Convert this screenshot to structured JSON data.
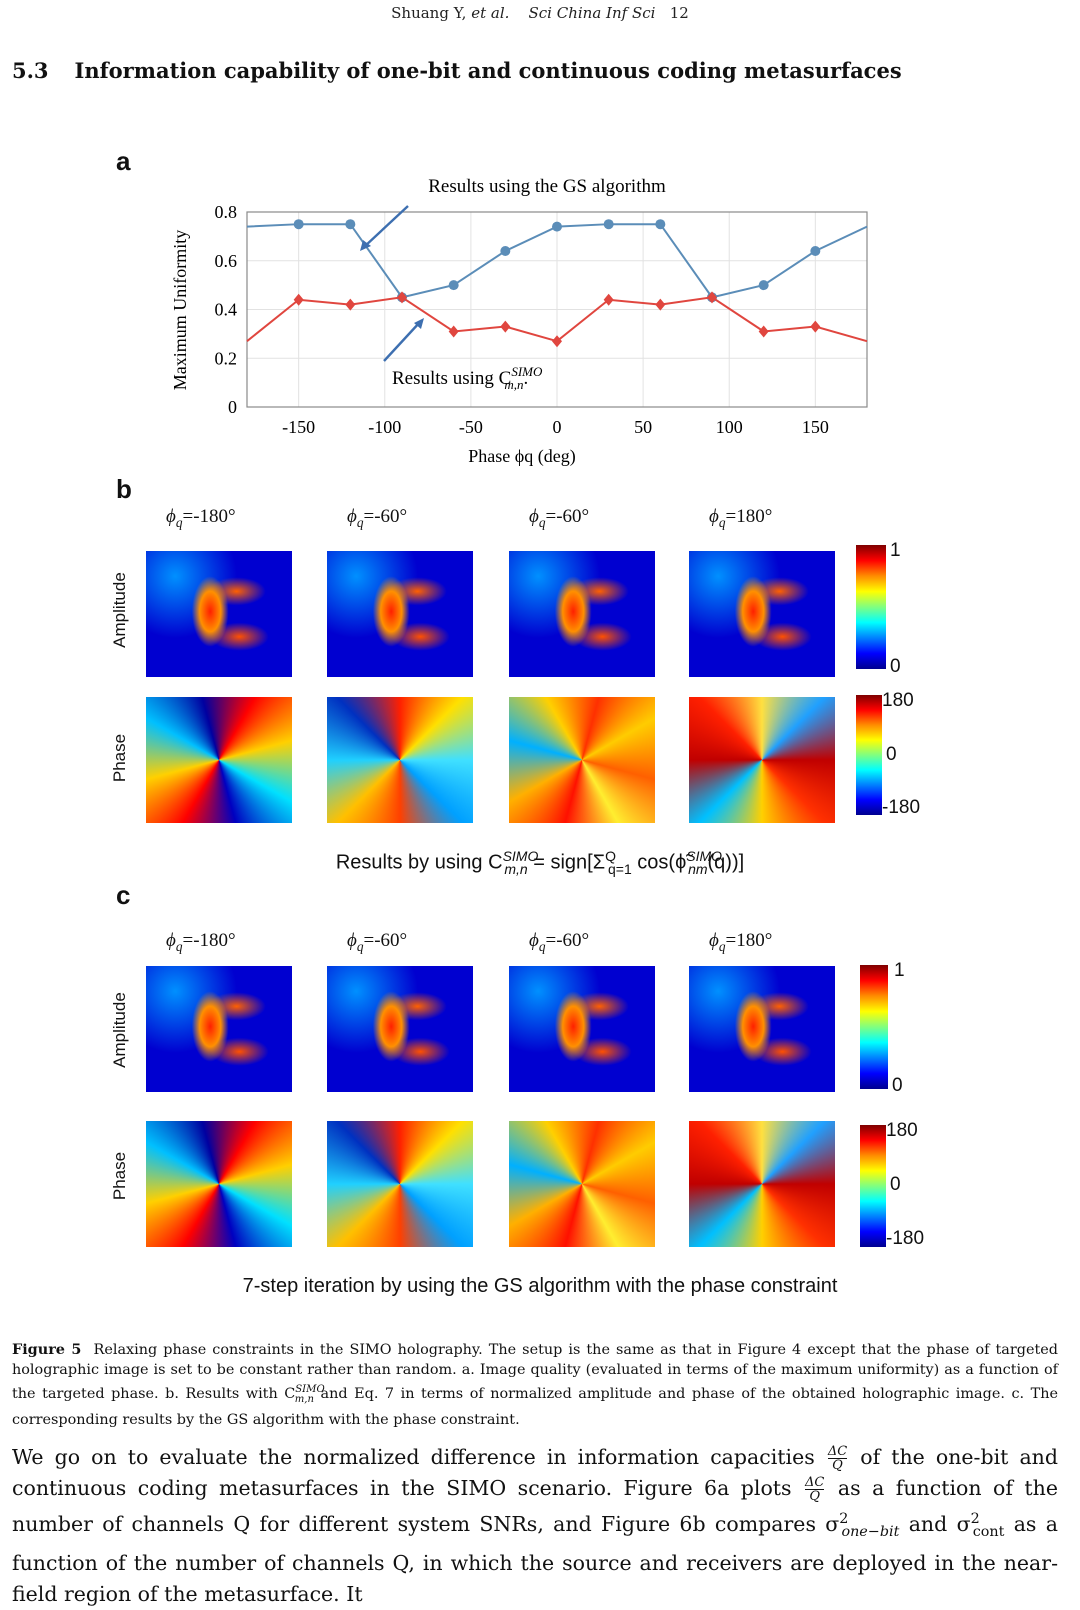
{
  "header": {
    "authors": "Shuang Y,",
    "etal": "et al.",
    "journal": "Sci China Inf Sci",
    "page": "12"
  },
  "section": {
    "number": "5.3",
    "title": "Information capability of one-bit and continuous coding metasurfaces"
  },
  "panel_a": {
    "label": "a",
    "annotation_top": "Results using the GS algorithm",
    "annotation_bottom": "Results using C",
    "annotation_bottom_sup": "SIMO",
    "annotation_bottom_sub": "m,n"
  },
  "chart_data": {
    "type": "line",
    "title": "",
    "xlabel": "Phase ϕq (deg)",
    "ylabel": "Maximum Uniformity",
    "xlim": [
      -180,
      180
    ],
    "ylim": [
      0,
      0.8
    ],
    "xticks": [
      "-150",
      "-100",
      "-50",
      "0",
      "50",
      "100",
      "150"
    ],
    "yticks": [
      "0",
      "0.2",
      "0.4",
      "0.6",
      "0.8"
    ],
    "grid": true,
    "series": [
      {
        "name": "Results using the GS algorithm",
        "color": "#5b8db8",
        "marker": "circle",
        "x": [
          -180,
          -150,
          -120,
          -90,
          -60,
          -30,
          0,
          30,
          60,
          90,
          120,
          150,
          180
        ],
        "y": [
          0.74,
          0.75,
          0.75,
          0.45,
          0.5,
          0.64,
          0.74,
          0.75,
          0.75,
          0.45,
          0.5,
          0.64,
          0.74
        ]
      },
      {
        "name": "Results using C_SIMO",
        "color": "#e0463f",
        "marker": "diamond",
        "x": [
          -180,
          -150,
          -120,
          -90,
          -60,
          -30,
          0,
          30,
          60,
          90,
          120,
          150,
          180
        ],
        "y": [
          0.27,
          0.44,
          0.42,
          0.45,
          0.31,
          0.33,
          0.27,
          0.44,
          0.42,
          0.45,
          0.31,
          0.33,
          0.27
        ]
      }
    ]
  },
  "panel_b": {
    "label": "b",
    "columns": [
      "=-180°",
      "=-60°",
      "=-60°",
      "=180°"
    ],
    "phi": "ϕ",
    "q": "q",
    "rows": [
      "Amplitude",
      "Phase"
    ],
    "amp_scale": [
      "1",
      "0"
    ],
    "phase_scale": [
      "180",
      "0",
      "-180"
    ],
    "note": "Results by using C",
    "note_sup": "SIMO",
    "note_sub": "m,n",
    "note_rest": " = sign[Σ",
    "note_sum_sup": "Q",
    "note_sum_sub": "q=1",
    "note_cos": " cos(ϕ̃",
    "note_cos_sup": "SIMO",
    "note_cos_sub": "nm",
    "note_tail": "(q))]"
  },
  "panel_c": {
    "label": "c",
    "columns": [
      "=-180°",
      "=-60°",
      "=-60°",
      "=180°"
    ],
    "rows": [
      "Amplitude",
      "Phase"
    ],
    "amp_scale": [
      "1",
      "0"
    ],
    "phase_scale": [
      "180",
      "0",
      "-180"
    ],
    "note": "7-step iteration by using the GS algorithm with the phase constraint"
  },
  "caption": {
    "label": "Figure 5",
    "text1": "Relaxing phase constraints in the SIMO holography. The setup is the same as that in Figure 4 except that the phase of targeted holographic image is set to be constant rather than random. a. Image quality (evaluated in terms of the maximum uniformity) as a function of the targeted phase. b. Results with C",
    "sup": "SIMO",
    "sub": "m,n",
    "text2": " and Eq. 7 in terms of normalized amplitude and phase of the obtained holographic image. c. The corresponding results by the GS algorithm with the phase constraint."
  },
  "body": {
    "p1": "We go on to evaluate the normalized difference in information capacities",
    "frac_num": "ΔC",
    "frac_den": "Q",
    "p2": " of the one-bit and continuous coding metasurfaces in the SIMO scenario. Figure 6a plots ",
    "p3": " as a function of the number of channels Q for different system SNRs, and Figure 6b compares σ",
    "s1sup": "2",
    "s1sub": "one−bit",
    "p4": " and σ",
    "s2sup": "2",
    "s2sub": "cont",
    "p5": " as a function of the number of channels Q, in which the source and receivers are deployed in the near-field region of the metasurface. It"
  }
}
